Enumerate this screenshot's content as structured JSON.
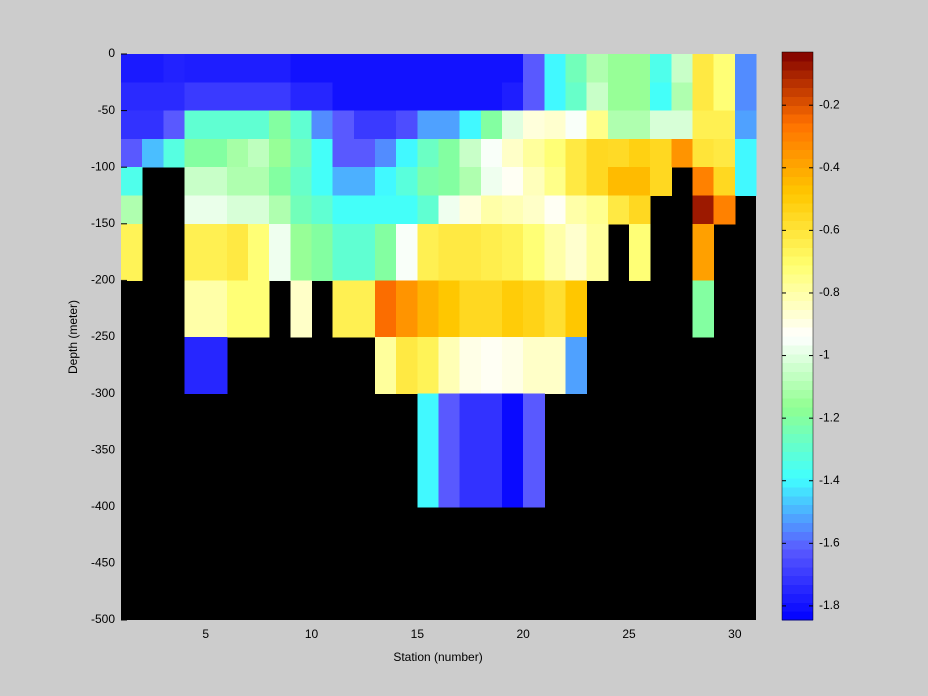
{
  "chart_data": {
    "type": "heatmap",
    "xlabel": "Station (number)",
    "ylabel": "Depth (meter)",
    "x_edges": [
      1,
      2,
      3,
      4,
      5,
      6,
      7,
      8,
      9,
      10,
      11,
      12,
      13,
      14,
      15,
      16,
      17,
      18,
      19,
      20,
      21,
      22,
      23,
      24,
      25,
      26,
      27,
      28,
      29,
      30,
      31
    ],
    "y_edges": [
      0,
      -25,
      -50,
      -75,
      -100,
      -125,
      -150,
      -175,
      -200,
      -225,
      -250,
      -275,
      -300,
      -325,
      -350,
      -375,
      -400,
      -425,
      -450,
      -475,
      -500
    ],
    "values": [
      [
        -1.78,
        -1.78,
        -1.76,
        -1.77,
        -1.77,
        -1.77,
        -1.77,
        -1.77,
        -1.8,
        -1.8,
        -1.8,
        -1.8,
        -1.8,
        -1.8,
        -1.8,
        -1.8,
        -1.8,
        -1.8,
        -1.8,
        -1.62,
        -1.4,
        -1.25,
        -1.1,
        -1.15,
        -1.15,
        -1.35,
        -1.05,
        -0.62,
        -0.72,
        -1.55
      ],
      [
        -1.74,
        -1.74,
        -1.74,
        -1.7,
        -1.7,
        -1.7,
        -1.7,
        -1.7,
        -1.75,
        -1.75,
        -1.8,
        -1.8,
        -1.8,
        -1.8,
        -1.8,
        -1.8,
        -1.8,
        -1.8,
        -1.77,
        -1.62,
        -1.4,
        -1.28,
        -1.05,
        -1.15,
        -1.15,
        -1.38,
        -1.1,
        -0.62,
        -0.72,
        -1.55
      ],
      [
        -1.72,
        -1.72,
        -1.62,
        -1.3,
        -1.3,
        -1.3,
        -1.3,
        -1.2,
        -1.3,
        -1.55,
        -1.62,
        -1.7,
        -1.7,
        -1.65,
        -1.52,
        -1.52,
        -1.4,
        -1.2,
        -1.0,
        -0.88,
        -0.86,
        -0.95,
        -0.75,
        -1.1,
        -1.1,
        -1.02,
        -1.02,
        -0.65,
        -0.65,
        -1.52
      ],
      [
        -1.62,
        -1.48,
        -1.33,
        -1.2,
        -1.2,
        -1.12,
        -1.07,
        -1.15,
        -1.25,
        -1.38,
        -1.62,
        -1.62,
        -1.55,
        -1.4,
        -1.27,
        -1.2,
        -1.05,
        -0.95,
        -0.85,
        -0.78,
        -0.72,
        -0.62,
        -0.55,
        -0.56,
        -0.52,
        -0.55,
        -0.35,
        -0.6,
        -0.62,
        -1.4
      ],
      [
        -1.35,
        null,
        null,
        -1.05,
        -1.05,
        -1.1,
        -1.1,
        -1.2,
        -1.28,
        -1.38,
        -1.5,
        -1.5,
        -1.4,
        -1.32,
        -1.22,
        -1.2,
        -1.1,
        -0.97,
        -0.92,
        -0.83,
        -0.75,
        -0.62,
        -0.55,
        -0.45,
        -0.45,
        -0.55,
        null,
        -0.3,
        -0.55,
        -1.4
      ],
      [
        -1.1,
        null,
        null,
        -0.98,
        -0.98,
        -1.02,
        -1.02,
        -1.1,
        -1.25,
        -1.3,
        -1.38,
        -1.38,
        -1.38,
        -1.38,
        -1.3,
        -0.97,
        -0.88,
        -0.8,
        -0.82,
        -0.85,
        -0.92,
        -0.8,
        -0.76,
        -0.62,
        -0.55,
        null,
        null,
        -0.08,
        -0.3,
        null
      ],
      [
        -0.66,
        null,
        null,
        -0.65,
        -0.65,
        -0.62,
        -0.72,
        -0.97,
        -1.15,
        -1.2,
        -1.3,
        -1.3,
        -1.2,
        -0.95,
        -0.65,
        -0.62,
        -0.62,
        -0.64,
        -0.66,
        -0.72,
        -0.8,
        -0.86,
        -0.78,
        null,
        -0.72,
        null,
        null,
        -0.38,
        null,
        null
      ],
      [
        -0.66,
        null,
        null,
        -0.65,
        -0.65,
        -0.62,
        -0.72,
        -0.97,
        -1.15,
        -1.2,
        -1.3,
        -1.3,
        -1.2,
        -0.95,
        -0.65,
        -0.62,
        -0.62,
        -0.64,
        -0.66,
        -0.72,
        -0.8,
        -0.86,
        -0.78,
        null,
        -0.72,
        null,
        null,
        -0.38,
        null,
        null
      ],
      [
        null,
        null,
        null,
        -0.8,
        -0.8,
        -0.72,
        -0.72,
        null,
        -0.85,
        null,
        -0.65,
        -0.65,
        -0.25,
        -0.35,
        -0.43,
        -0.48,
        -0.55,
        -0.55,
        -0.5,
        -0.53,
        -0.58,
        -0.48,
        null,
        null,
        null,
        null,
        null,
        -1.2,
        null,
        null
      ],
      [
        null,
        null,
        null,
        -0.8,
        -0.8,
        -0.72,
        -0.72,
        null,
        -0.85,
        null,
        -0.65,
        -0.65,
        -0.25,
        -0.35,
        -0.43,
        -0.48,
        -0.55,
        -0.55,
        -0.5,
        -0.53,
        -0.58,
        -0.48,
        null,
        null,
        null,
        null,
        null,
        -1.2,
        null,
        null
      ],
      [
        null,
        null,
        null,
        -1.75,
        -1.75,
        null,
        null,
        null,
        null,
        null,
        null,
        null,
        -0.78,
        -0.62,
        -0.66,
        -0.82,
        -0.9,
        -0.92,
        -0.9,
        -0.85,
        -0.85,
        -1.52,
        null,
        null,
        null,
        null,
        null,
        null,
        null,
        null
      ],
      [
        null,
        null,
        null,
        -1.75,
        -1.75,
        null,
        null,
        null,
        null,
        null,
        null,
        null,
        -0.78,
        -0.62,
        -0.66,
        -0.82,
        -0.9,
        -0.92,
        -0.9,
        -0.85,
        -0.85,
        -1.52,
        null,
        null,
        null,
        null,
        null,
        null,
        null,
        null
      ],
      [
        null,
        null,
        null,
        null,
        null,
        null,
        null,
        null,
        null,
        null,
        null,
        null,
        null,
        null,
        -1.4,
        -1.62,
        -1.72,
        -1.72,
        -1.82,
        -1.62,
        null,
        null,
        null,
        null,
        null,
        null,
        null,
        null,
        null,
        null
      ],
      [
        null,
        null,
        null,
        null,
        null,
        null,
        null,
        null,
        null,
        null,
        null,
        null,
        null,
        null,
        -1.4,
        -1.62,
        -1.72,
        -1.72,
        -1.82,
        -1.62,
        null,
        null,
        null,
        null,
        null,
        null,
        null,
        null,
        null,
        null
      ],
      [
        null,
        null,
        null,
        null,
        null,
        null,
        null,
        null,
        null,
        null,
        null,
        null,
        null,
        null,
        -1.4,
        -1.62,
        -1.72,
        -1.72,
        -1.82,
        -1.62,
        null,
        null,
        null,
        null,
        null,
        null,
        null,
        null,
        null,
        null
      ],
      [
        null,
        null,
        null,
        null,
        null,
        null,
        null,
        null,
        null,
        null,
        null,
        null,
        null,
        null,
        -1.4,
        -1.62,
        -1.72,
        -1.72,
        -1.82,
        -1.62,
        null,
        null,
        null,
        null,
        null,
        null,
        null,
        null,
        null,
        null
      ],
      [
        null,
        null,
        null,
        null,
        null,
        null,
        null,
        null,
        null,
        null,
        null,
        null,
        null,
        null,
        null,
        null,
        null,
        null,
        null,
        null,
        null,
        null,
        null,
        null,
        null,
        null,
        null,
        null,
        null,
        null
      ],
      [
        null,
        null,
        null,
        null,
        null,
        null,
        null,
        null,
        null,
        null,
        null,
        null,
        null,
        null,
        null,
        null,
        null,
        null,
        null,
        null,
        null,
        null,
        null,
        null,
        null,
        null,
        null,
        null,
        null,
        null
      ],
      [
        null,
        null,
        null,
        null,
        null,
        null,
        null,
        null,
        null,
        null,
        null,
        null,
        null,
        null,
        null,
        null,
        null,
        null,
        null,
        null,
        null,
        null,
        null,
        null,
        null,
        null,
        null,
        null,
        null,
        null
      ],
      [
        null,
        null,
        null,
        null,
        null,
        null,
        null,
        null,
        null,
        null,
        null,
        null,
        null,
        null,
        null,
        null,
        null,
        null,
        null,
        null,
        null,
        null,
        null,
        null,
        null,
        null,
        null,
        null,
        null,
        null
      ]
    ],
    "xlim": [
      1,
      31
    ],
    "xticks": [
      5,
      10,
      15,
      20,
      25,
      30
    ],
    "ylim": [
      -500,
      0
    ],
    "yticks": [
      -500,
      -450,
      -400,
      -350,
      -300,
      -250,
      -200,
      -150,
      -100,
      -50,
      0
    ],
    "clim": [
      -1.845,
      -0.03
    ],
    "cticks": [
      -1.8,
      -1.6,
      -1.4,
      -1.2,
      -1,
      -0.8,
      -0.6,
      -0.4,
      -0.2
    ],
    "colormap": [
      "#0000ff",
      "#5a5aff",
      "#40ffff",
      "#90ff90",
      "#ffffff",
      "#ffff70",
      "#ffc800",
      "#ff7000",
      "#800000"
    ],
    "nan_color": "#000000",
    "background": "#cccccc"
  }
}
